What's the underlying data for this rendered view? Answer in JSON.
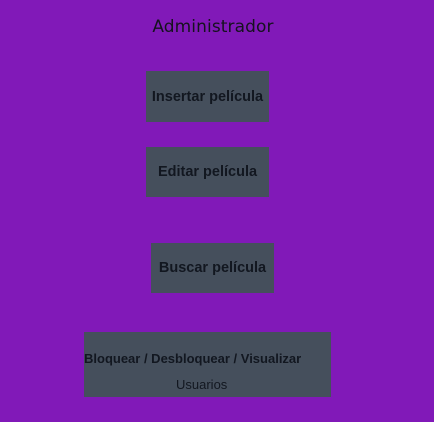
{
  "header": {
    "title": "Administrador"
  },
  "buttons": {
    "insert_label": "Insertar película",
    "edit_label": "Editar película",
    "search_label": "Buscar película",
    "users_line1": "Bloquear / Desbloquear / Visualizar",
    "users_line2": "Usuarios"
  },
  "colors": {
    "background": "#8119b8",
    "button_bg": "#454f5c",
    "text": "#121720"
  }
}
